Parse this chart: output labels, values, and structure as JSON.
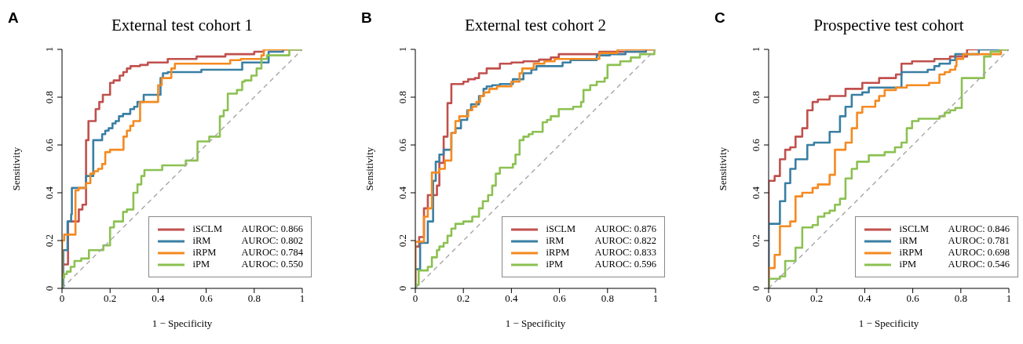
{
  "chart_data": [
    {
      "type": "step",
      "title": "External test cohort 1",
      "xlabel": "1 − Specificity",
      "ylabel": "Sensitivity",
      "xlim": [
        0,
        1
      ],
      "ylim": [
        0,
        1
      ],
      "xticks": [
        0,
        0.2,
        0.4,
        0.6,
        0.8,
        1
      ],
      "yticks": [
        0,
        0.2,
        0.4,
        0.6,
        0.8,
        1
      ],
      "legend": "bottom right",
      "annotations": [
        "A",
        "AUROC: 0.866",
        "AUROC: 0.802",
        "AUROC: 0.784",
        "AUROC: 0.550"
      ],
      "series": [
        {
          "name": "iSCLM",
          "color": "#c0504d",
          "x": [
            0,
            0,
            0.025,
            0.07,
            0.085,
            0.1,
            0.11,
            0.14,
            0.155,
            0.17,
            0.2,
            0.215,
            0.24,
            0.255,
            0.27,
            0.285,
            0.325,
            0.357,
            0.44,
            0.56,
            0.68,
            0.8,
            0.84,
            1
          ],
          "values": [
            0,
            0.1,
            0.28,
            0.33,
            0.35,
            0.62,
            0.7,
            0.75,
            0.78,
            0.81,
            0.86,
            0.87,
            0.89,
            0.905,
            0.92,
            0.93,
            0.935,
            0.945,
            0.96,
            0.97,
            0.98,
            0.99,
            1,
            1
          ]
        },
        {
          "name": "iRM",
          "color": "#3a7fa3",
          "x": [
            0,
            0.005,
            0.023,
            0.038,
            0.041,
            0.1,
            0.13,
            0.167,
            0.18,
            0.194,
            0.21,
            0.223,
            0.237,
            0.254,
            0.284,
            0.3,
            0.314,
            0.34,
            0.41,
            0.42,
            0.44,
            0.58,
            0.75,
            0.86,
            0.92,
            1
          ],
          "values": [
            0,
            0.16,
            0.28,
            0.31,
            0.42,
            0.47,
            0.62,
            0.645,
            0.66,
            0.67,
            0.69,
            0.7,
            0.72,
            0.73,
            0.75,
            0.76,
            0.78,
            0.81,
            0.88,
            0.9,
            0.905,
            0.915,
            0.945,
            0.99,
            1,
            1
          ]
        },
        {
          "name": "iRPM",
          "color": "#f58a20",
          "x": [
            0,
            0,
            0.009,
            0.056,
            0.069,
            0.1,
            0.118,
            0.134,
            0.15,
            0.167,
            0.18,
            0.2,
            0.256,
            0.27,
            0.284,
            0.297,
            0.325,
            0.4,
            0.415,
            0.455,
            0.47,
            0.7,
            0.744,
            0.83,
            0.84,
            1
          ],
          "values": [
            0,
            0.2,
            0.225,
            0.41,
            0.42,
            0.44,
            0.48,
            0.49,
            0.5,
            0.52,
            0.57,
            0.58,
            0.635,
            0.66,
            0.68,
            0.7,
            0.78,
            0.85,
            0.88,
            0.92,
            0.94,
            0.955,
            0.96,
            0.975,
            1,
            1
          ]
        },
        {
          "name": "iPM",
          "color": "#8cc152",
          "x": [
            0,
            0,
            0.009,
            0.02,
            0.036,
            0.052,
            0.08,
            0.112,
            0.172,
            0.2,
            0.216,
            0.254,
            0.27,
            0.297,
            0.314,
            0.33,
            0.343,
            0.417,
            0.515,
            0.564,
            0.613,
            0.657,
            0.673,
            0.69,
            0.728,
            0.75,
            0.76,
            0.788,
            0.81,
            0.83,
            0.853,
            0.946,
            1
          ],
          "values": [
            0,
            0.045,
            0.06,
            0.07,
            0.09,
            0.115,
            0.125,
            0.16,
            0.18,
            0.255,
            0.28,
            0.32,
            0.33,
            0.4,
            0.435,
            0.47,
            0.495,
            0.515,
            0.535,
            0.615,
            0.635,
            0.72,
            0.745,
            0.815,
            0.83,
            0.865,
            0.87,
            0.89,
            0.92,
            0.96,
            0.975,
            1,
            1
          ]
        },
        {
          "type": "line",
          "line_style": "dashed",
          "color": "#a6a6a6",
          "x": [
            0,
            1
          ],
          "values": [
            0,
            1
          ]
        }
      ]
    },
    {
      "type": "step",
      "title": "External test cohort 2",
      "xlabel": "1 − Specificity",
      "ylabel": "Sensitivity",
      "xlim": [
        0,
        1
      ],
      "ylim": [
        0,
        1
      ],
      "xticks": [
        0,
        0.2,
        0.4,
        0.6,
        0.8,
        1
      ],
      "yticks": [
        0,
        0.2,
        0.4,
        0.6,
        0.8,
        1
      ],
      "legend": "bottom right",
      "annotations": [
        "B",
        "AUROC: 0.876",
        "AUROC: 0.822",
        "AUROC: 0.833",
        "AUROC: 0.596"
      ],
      "series": [
        {
          "name": "iSCLM",
          "color": "#c0504d",
          "x": [
            0,
            0,
            0.016,
            0.036,
            0.052,
            0.09,
            0.1,
            0.118,
            0.134,
            0.15,
            0.2,
            0.22,
            0.248,
            0.265,
            0.297,
            0.352,
            0.4,
            0.45,
            0.515,
            0.564,
            0.597,
            0.766,
            0.96,
            1
          ],
          "values": [
            0,
            0.175,
            0.215,
            0.335,
            0.39,
            0.43,
            0.525,
            0.635,
            0.775,
            0.855,
            0.865,
            0.875,
            0.88,
            0.9,
            0.92,
            0.94,
            0.945,
            0.95,
            0.957,
            0.966,
            0.98,
            0.99,
            1,
            1
          ]
        },
        {
          "name": "iRM",
          "color": "#3a7fa3",
          "x": [
            0,
            0,
            0.02,
            0.052,
            0.074,
            0.085,
            0.1,
            0.118,
            0.15,
            0.167,
            0.19,
            0.216,
            0.232,
            0.265,
            0.284,
            0.297,
            0.32,
            0.352,
            0.406,
            0.45,
            0.483,
            0.504,
            0.613,
            0.646,
            0.755,
            0.81,
            0.875,
            0.96,
            1
          ],
          "values": [
            0,
            0.08,
            0.19,
            0.28,
            0.45,
            0.53,
            0.56,
            0.58,
            0.65,
            0.67,
            0.705,
            0.745,
            0.77,
            0.805,
            0.835,
            0.845,
            0.85,
            0.855,
            0.875,
            0.9,
            0.915,
            0.93,
            0.945,
            0.955,
            0.975,
            0.98,
            0.99,
            1,
            1
          ]
        },
        {
          "name": "iRPM",
          "color": "#f58a20",
          "x": [
            0,
            0,
            0.036,
            0.052,
            0.069,
            0.1,
            0.123,
            0.15,
            0.167,
            0.183,
            0.22,
            0.237,
            0.254,
            0.27,
            0.286,
            0.308,
            0.34,
            0.4,
            0.434,
            0.445,
            0.493,
            0.537,
            0.58,
            0.766,
            0.842,
            1
          ],
          "values": [
            0,
            0.195,
            0.3,
            0.335,
            0.485,
            0.5,
            0.535,
            0.65,
            0.7,
            0.72,
            0.745,
            0.76,
            0.78,
            0.805,
            0.82,
            0.835,
            0.845,
            0.865,
            0.9,
            0.92,
            0.94,
            0.95,
            0.96,
            0.985,
            1,
            1
          ]
        },
        {
          "name": "iPM",
          "color": "#8cc152",
          "x": [
            0,
            0,
            0.014,
            0.052,
            0.069,
            0.09,
            0.1,
            0.118,
            0.134,
            0.15,
            0.167,
            0.2,
            0.237,
            0.265,
            0.281,
            0.303,
            0.32,
            0.335,
            0.352,
            0.406,
            0.417,
            0.434,
            0.45,
            0.472,
            0.488,
            0.53,
            0.548,
            0.564,
            0.597,
            0.657,
            0.69,
            0.7,
            0.728,
            0.755,
            0.788,
            0.8,
            0.853,
            0.897,
            0.935,
            0.995,
            1
          ],
          "values": [
            0,
            0.015,
            0.075,
            0.09,
            0.13,
            0.16,
            0.175,
            0.19,
            0.22,
            0.25,
            0.27,
            0.28,
            0.3,
            0.335,
            0.365,
            0.39,
            0.43,
            0.48,
            0.505,
            0.52,
            0.56,
            0.62,
            0.635,
            0.645,
            0.655,
            0.695,
            0.705,
            0.72,
            0.75,
            0.76,
            0.78,
            0.83,
            0.85,
            0.865,
            0.88,
            0.935,
            0.95,
            0.966,
            0.98,
            1,
            1
          ]
        },
        {
          "type": "line",
          "line_style": "dashed",
          "color": "#a6a6a6",
          "x": [
            0,
            1
          ],
          "values": [
            0,
            1
          ]
        }
      ]
    },
    {
      "type": "step",
      "title": "Prospective test cohort",
      "xlabel": "1 − Specificity",
      "ylabel": "Sensitivity",
      "xlim": [
        0,
        1
      ],
      "ylim": [
        0,
        1
      ],
      "xticks": [
        0,
        0.2,
        0.4,
        0.6,
        0.8,
        1
      ],
      "yticks": [
        0,
        0.2,
        0.4,
        0.6,
        0.8,
        1
      ],
      "legend": "bottom right",
      "annotations": [
        "C",
        "AUROC: 0.846",
        "AUROC: 0.781",
        "AUROC: 0.698",
        "AUROC: 0.546"
      ],
      "series": [
        {
          "name": "iSCLM",
          "color": "#c0504d",
          "x": [
            0,
            0,
            0.025,
            0.047,
            0.069,
            0.09,
            0.112,
            0.14,
            0.161,
            0.183,
            0.205,
            0.254,
            0.32,
            0.39,
            0.46,
            0.53,
            0.553,
            0.597,
            0.69,
            0.755,
            0.826,
            1
          ],
          "values": [
            0,
            0.45,
            0.47,
            0.54,
            0.58,
            0.59,
            0.635,
            0.67,
            0.745,
            0.78,
            0.79,
            0.805,
            0.835,
            0.86,
            0.88,
            0.895,
            0.94,
            0.95,
            0.96,
            0.97,
            1,
            1
          ]
        },
        {
          "name": "iRM",
          "color": "#3a7fa3",
          "x": [
            0,
            0,
            0.047,
            0.069,
            0.09,
            0.112,
            0.161,
            0.189,
            0.254,
            0.297,
            0.32,
            0.346,
            0.39,
            0.417,
            0.553,
            0.662,
            0.69,
            0.711,
            0.755,
            0.777,
            0.875,
            1
          ],
          "values": [
            0,
            0.27,
            0.365,
            0.44,
            0.5,
            0.54,
            0.6,
            0.61,
            0.655,
            0.72,
            0.76,
            0.81,
            0.82,
            0.84,
            0.905,
            0.915,
            0.93,
            0.94,
            0.955,
            0.98,
            1,
            1
          ]
        },
        {
          "name": "iRPM",
          "color": "#f58a20",
          "x": [
            0,
            0,
            0.025,
            0.047,
            0.09,
            0.112,
            0.14,
            0.183,
            0.205,
            0.254,
            0.276,
            0.32,
            0.346,
            0.368,
            0.39,
            0.444,
            0.46,
            0.483,
            0.53,
            0.575,
            0.668,
            0.711,
            0.733,
            0.755,
            0.777,
            0.782,
            0.81,
            0.967,
            1
          ],
          "values": [
            0,
            0.085,
            0.14,
            0.26,
            0.28,
            0.385,
            0.4,
            0.42,
            0.435,
            0.475,
            0.58,
            0.61,
            0.67,
            0.735,
            0.76,
            0.785,
            0.805,
            0.83,
            0.84,
            0.85,
            0.86,
            0.895,
            0.905,
            0.915,
            0.93,
            0.96,
            0.98,
            1,
            1
          ]
        },
        {
          "name": "iPM",
          "color": "#8cc152",
          "x": [
            0,
            0,
            0.047,
            0.069,
            0.112,
            0.14,
            0.183,
            0.205,
            0.232,
            0.254,
            0.276,
            0.297,
            0.32,
            0.346,
            0.368,
            0.417,
            0.483,
            0.526,
            0.553,
            0.575,
            0.597,
            0.624,
            0.711,
            0.733,
            0.755,
            0.777,
            0.804,
            0.897,
            0.924,
            0.962,
            1
          ],
          "values": [
            0,
            0.04,
            0.05,
            0.115,
            0.17,
            0.255,
            0.265,
            0.3,
            0.315,
            0.325,
            0.35,
            0.375,
            0.46,
            0.5,
            0.53,
            0.557,
            0.57,
            0.59,
            0.61,
            0.67,
            0.7,
            0.71,
            0.72,
            0.735,
            0.745,
            0.755,
            0.88,
            0.97,
            0.99,
            1,
            1
          ]
        },
        {
          "type": "line",
          "line_style": "dashed",
          "color": "#a6a6a6",
          "x": [
            0,
            1
          ],
          "values": [
            0,
            1
          ]
        }
      ]
    }
  ]
}
